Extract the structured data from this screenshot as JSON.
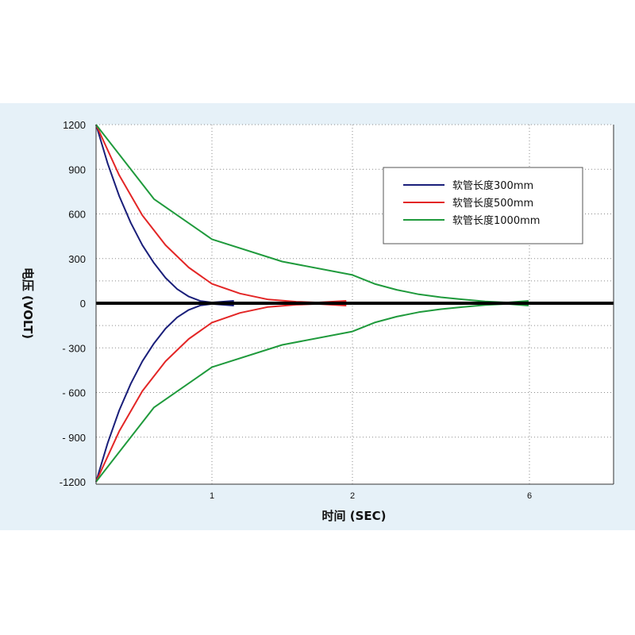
{
  "chart_data": {
    "type": "line",
    "xlabel": "时间 (SEC)",
    "ylabel": "电压 (VOLT)",
    "y_ticks": [
      "1200",
      "900",
      "600",
      "300",
      "0",
      "- 300",
      "- 600",
      "- 900",
      "-1200"
    ],
    "x_ticks": [
      "1",
      "2",
      "6"
    ],
    "ylim": [
      -1200,
      1200
    ],
    "grid": true,
    "legend_position": "top-right",
    "series": [
      {
        "name": "软管长度300mm",
        "color": "#1a1f7a",
        "x": [
          0,
          0.1,
          0.2,
          0.3,
          0.4,
          0.5,
          0.6,
          0.7,
          0.8,
          0.9,
          1.0,
          1.1
        ],
        "y": [
          1200,
          940,
          720,
          540,
          390,
          270,
          170,
          95,
          45,
          15,
          5,
          0
        ]
      },
      {
        "name": "软管长度500mm",
        "color": "#e32626",
        "x": [
          0,
          0.2,
          0.4,
          0.6,
          0.8,
          1.0,
          1.2,
          1.4,
          1.6,
          1.75,
          1.9
        ],
        "y": [
          1200,
          860,
          590,
          390,
          240,
          130,
          65,
          25,
          10,
          5,
          0
        ]
      },
      {
        "name": "软管长度1000mm",
        "color": "#1f9a3c",
        "x": [
          0,
          0.5,
          1,
          1.5,
          2,
          2.5,
          3,
          3.5,
          4,
          4.5,
          5,
          5.5,
          5.8
        ],
        "y": [
          1200,
          700,
          430,
          280,
          190,
          130,
          90,
          60,
          40,
          25,
          12,
          5,
          0
        ]
      }
    ]
  }
}
